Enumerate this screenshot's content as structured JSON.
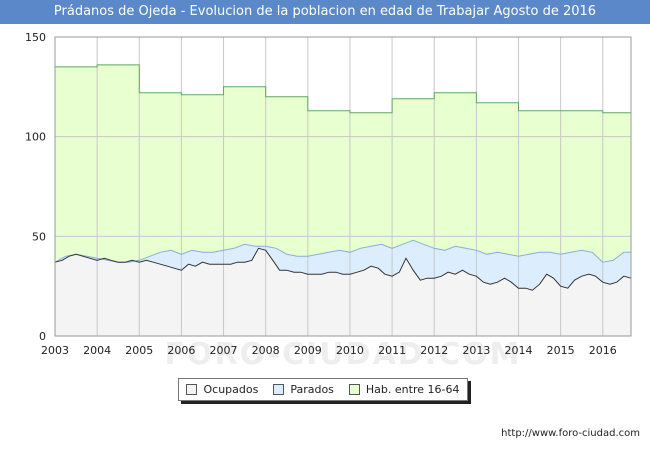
{
  "title": "Prádanos de Ojeda - Evolucion de la poblacion en edad de Trabajar Agosto de 2016",
  "watermark": "FORO-CIUDAD.COM",
  "footer": "http://www.foro-ciudad.com",
  "colors": {
    "title_bg": "#5a88c8",
    "hab_fill": "#e8ffcf",
    "hab_line": "#5fa85f",
    "parados_fill": "#dceefe",
    "parados_line": "#88aee0",
    "ocupados_fill": "#f4f4f4",
    "ocupados_line": "#333333",
    "grid": "#c8c8c8"
  },
  "legend": [
    {
      "label": "Ocupados",
      "color": "#f4f4f4"
    },
    {
      "label": "Parados",
      "color": "#dceefe"
    },
    {
      "label": "Hab. entre 16-64",
      "color": "#e8ffcf"
    }
  ],
  "chart_data": {
    "type": "area",
    "x_ticks": [
      "2003",
      "2004",
      "2005",
      "2006",
      "2007",
      "2008",
      "2009",
      "2010",
      "2011",
      "2012",
      "2013",
      "2014",
      "2015",
      "2016"
    ],
    "y_ticks": [
      0,
      50,
      100,
      150
    ],
    "xlim": [
      2003,
      2016.67
    ],
    "ylim": [
      0,
      150
    ],
    "grid": true,
    "legend_position": "bottom",
    "series": [
      {
        "name": "Hab. entre 16-64",
        "step": true,
        "points": [
          [
            2003,
            135
          ],
          [
            2004,
            135
          ],
          [
            2004,
            136
          ],
          [
            2005,
            136
          ],
          [
            2005,
            122
          ],
          [
            2006,
            122
          ],
          [
            2006,
            121
          ],
          [
            2007,
            121
          ],
          [
            2007,
            125
          ],
          [
            2008,
            125
          ],
          [
            2008,
            120
          ],
          [
            2009,
            120
          ],
          [
            2009,
            113
          ],
          [
            2010,
            113
          ],
          [
            2010,
            112
          ],
          [
            2011,
            112
          ],
          [
            2011,
            119
          ],
          [
            2012,
            119
          ],
          [
            2012,
            122
          ],
          [
            2013,
            122
          ],
          [
            2013,
            117
          ],
          [
            2014,
            117
          ],
          [
            2014,
            113
          ],
          [
            2015,
            113
          ],
          [
            2015,
            113
          ],
          [
            2016,
            113
          ],
          [
            2016,
            112
          ],
          [
            2016.67,
            112
          ]
        ]
      },
      {
        "name": "Parados",
        "points": [
          [
            2003,
            37
          ],
          [
            2003.25,
            40
          ],
          [
            2003.5,
            41
          ],
          [
            2003.75,
            40
          ],
          [
            2004,
            39
          ],
          [
            2004.25,
            38
          ],
          [
            2004.5,
            37
          ],
          [
            2004.75,
            37
          ],
          [
            2005,
            38
          ],
          [
            2005.25,
            40
          ],
          [
            2005.5,
            42
          ],
          [
            2005.75,
            43
          ],
          [
            2006,
            41
          ],
          [
            2006.25,
            43
          ],
          [
            2006.5,
            42
          ],
          [
            2006.75,
            42
          ],
          [
            2007,
            43
          ],
          [
            2007.25,
            44
          ],
          [
            2007.5,
            46
          ],
          [
            2007.75,
            45
          ],
          [
            2008,
            45
          ],
          [
            2008.25,
            44
          ],
          [
            2008.5,
            41
          ],
          [
            2008.75,
            40
          ],
          [
            2009,
            40
          ],
          [
            2009.25,
            41
          ],
          [
            2009.5,
            42
          ],
          [
            2009.75,
            43
          ],
          [
            2010,
            42
          ],
          [
            2010.25,
            44
          ],
          [
            2010.5,
            45
          ],
          [
            2010.75,
            46
          ],
          [
            2011,
            44
          ],
          [
            2011.25,
            46
          ],
          [
            2011.5,
            48
          ],
          [
            2011.75,
            46
          ],
          [
            2012,
            44
          ],
          [
            2012.25,
            43
          ],
          [
            2012.5,
            45
          ],
          [
            2012.75,
            44
          ],
          [
            2013,
            43
          ],
          [
            2013.25,
            41
          ],
          [
            2013.5,
            42
          ],
          [
            2013.75,
            41
          ],
          [
            2014,
            40
          ],
          [
            2014.25,
            41
          ],
          [
            2014.5,
            42
          ],
          [
            2014.75,
            42
          ],
          [
            2015,
            41
          ],
          [
            2015.25,
            42
          ],
          [
            2015.5,
            43
          ],
          [
            2015.75,
            42
          ],
          [
            2016,
            37
          ],
          [
            2016.25,
            38
          ],
          [
            2016.5,
            42
          ],
          [
            2016.67,
            42
          ]
        ]
      },
      {
        "name": "Ocupados",
        "points": [
          [
            2003,
            37
          ],
          [
            2003.17,
            38
          ],
          [
            2003.33,
            40
          ],
          [
            2003.5,
            41
          ],
          [
            2003.67,
            40
          ],
          [
            2003.83,
            39
          ],
          [
            2004,
            38
          ],
          [
            2004.17,
            39
          ],
          [
            2004.33,
            38
          ],
          [
            2004.5,
            37
          ],
          [
            2004.67,
            37
          ],
          [
            2004.83,
            38
          ],
          [
            2005,
            37
          ],
          [
            2005.17,
            38
          ],
          [
            2005.33,
            37
          ],
          [
            2005.5,
            36
          ],
          [
            2005.67,
            35
          ],
          [
            2005.83,
            34
          ],
          [
            2006,
            33
          ],
          [
            2006.17,
            36
          ],
          [
            2006.33,
            35
          ],
          [
            2006.5,
            37
          ],
          [
            2006.67,
            36
          ],
          [
            2006.83,
            36
          ],
          [
            2007,
            36
          ],
          [
            2007.17,
            36
          ],
          [
            2007.33,
            37
          ],
          [
            2007.5,
            37
          ],
          [
            2007.67,
            38
          ],
          [
            2007.83,
            44
          ],
          [
            2008,
            43
          ],
          [
            2008.17,
            38
          ],
          [
            2008.33,
            33
          ],
          [
            2008.5,
            33
          ],
          [
            2008.67,
            32
          ],
          [
            2008.83,
            32
          ],
          [
            2009,
            31
          ],
          [
            2009.17,
            31
          ],
          [
            2009.33,
            31
          ],
          [
            2009.5,
            32
          ],
          [
            2009.67,
            32
          ],
          [
            2009.83,
            31
          ],
          [
            2010,
            31
          ],
          [
            2010.17,
            32
          ],
          [
            2010.33,
            33
          ],
          [
            2010.5,
            35
          ],
          [
            2010.67,
            34
          ],
          [
            2010.83,
            31
          ],
          [
            2011,
            30
          ],
          [
            2011.17,
            32
          ],
          [
            2011.33,
            39
          ],
          [
            2011.5,
            33
          ],
          [
            2011.67,
            28
          ],
          [
            2011.83,
            29
          ],
          [
            2012,
            29
          ],
          [
            2012.17,
            30
          ],
          [
            2012.33,
            32
          ],
          [
            2012.5,
            31
          ],
          [
            2012.67,
            33
          ],
          [
            2012.83,
            31
          ],
          [
            2013,
            30
          ],
          [
            2013.17,
            27
          ],
          [
            2013.33,
            26
          ],
          [
            2013.5,
            27
          ],
          [
            2013.67,
            29
          ],
          [
            2013.83,
            27
          ],
          [
            2014,
            24
          ],
          [
            2014.17,
            24
          ],
          [
            2014.33,
            23
          ],
          [
            2014.5,
            26
          ],
          [
            2014.67,
            31
          ],
          [
            2014.83,
            29
          ],
          [
            2015,
            25
          ],
          [
            2015.17,
            24
          ],
          [
            2015.33,
            28
          ],
          [
            2015.5,
            30
          ],
          [
            2015.67,
            31
          ],
          [
            2015.83,
            30
          ],
          [
            2016,
            27
          ],
          [
            2016.17,
            26
          ],
          [
            2016.33,
            27
          ],
          [
            2016.5,
            30
          ],
          [
            2016.67,
            29
          ]
        ]
      }
    ]
  }
}
